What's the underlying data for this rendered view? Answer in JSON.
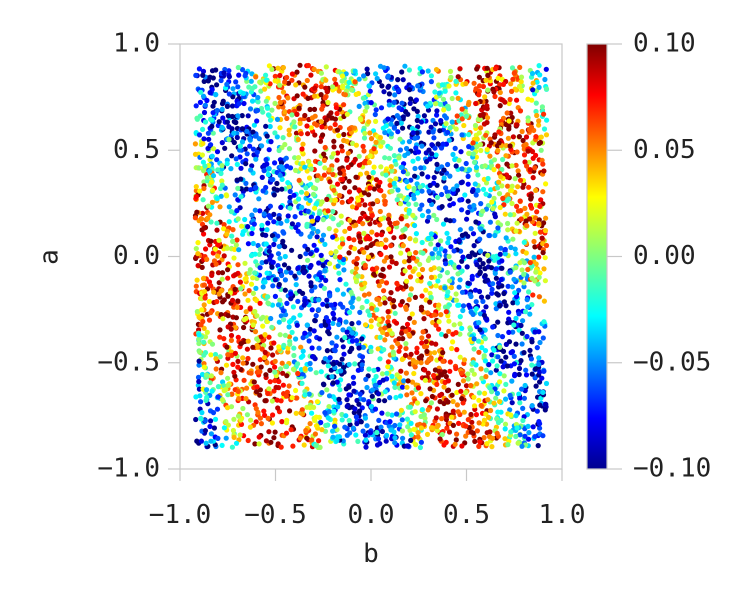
{
  "chart_data": {
    "type": "scatter",
    "title": "",
    "xlabel": "b",
    "ylabel": "a",
    "xlim": [
      -1.0,
      1.0
    ],
    "ylim": [
      -1.0,
      1.0
    ],
    "x_ticks": [
      "−1.0",
      "−0.5",
      "0.0",
      "0.5",
      "1.0"
    ],
    "x_tick_values": [
      -1.0,
      -0.5,
      0.0,
      0.5,
      1.0
    ],
    "y_ticks": [
      "−1.0",
      "−0.5",
      "0.0",
      "0.5",
      "1.0"
    ],
    "y_tick_values": [
      -1.0,
      -0.5,
      0.0,
      0.5,
      1.0
    ],
    "data_extent": {
      "b": [
        -0.92,
        0.92
      ],
      "a": [
        -0.9,
        0.9
      ]
    },
    "grid": false,
    "colormap": "jet",
    "colorbar": {
      "range": [
        -0.1,
        0.1
      ],
      "ticks": [
        "−0.10",
        "−0.05",
        "0.00",
        "0.05",
        "0.10"
      ],
      "tick_values": [
        -0.1,
        -0.05,
        0.0,
        0.05,
        0.1
      ],
      "placement": "right"
    },
    "pattern": "value ~ 0.08*sin(2*pi*(b + 0.5*a)/0.95 + 1.1) + noise",
    "point_count": 4200,
    "point_layout": "dense uniform scatter over data extent"
  }
}
